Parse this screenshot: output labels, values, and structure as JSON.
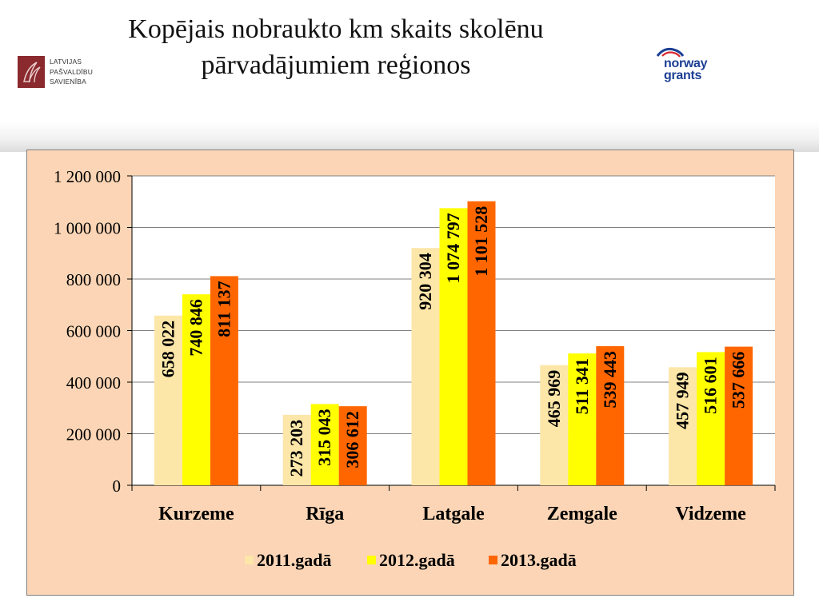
{
  "page": {
    "title_line1": "Kopējais nobraukto km skaits skolēnu",
    "title_line2": "pārvadājumiem reģionos"
  },
  "logos": {
    "lps": {
      "line1": "LATVIJAS",
      "line2": "PAŠVALDĪBU",
      "line3": "SAVIENĪBA",
      "color": "#8a2a2e"
    },
    "norway": {
      "line1": "norway",
      "line2": "grants",
      "color": "#1c3f94",
      "accent": "#d9262e"
    }
  },
  "colors": {
    "plot_background": "#ffffff",
    "chart_background": "#fbd5b5",
    "gridline": "#808080",
    "series": [
      "#fce6a8",
      "#ffff00",
      "#ff6600"
    ]
  },
  "chart_data": {
    "type": "bar",
    "categories": [
      "Kurzeme",
      "Rīga",
      "Latgale",
      "Zemgale",
      "Vidzeme"
    ],
    "series": [
      {
        "name": "2011.gadā",
        "values": [
          658022,
          273203,
          920304,
          465969,
          457949
        ]
      },
      {
        "name": "2012.gadā",
        "values": [
          740846,
          315043,
          1074797,
          511341,
          516601
        ]
      },
      {
        "name": "2013.gadā",
        "values": [
          811137,
          306612,
          1101528,
          539443,
          537666
        ]
      }
    ],
    "data_labels": [
      [
        "658 022",
        "273 203",
        "920 304",
        "465 969",
        "457 949"
      ],
      [
        "740 846",
        "315 043",
        "1 074 797",
        "511 341",
        "516 601"
      ],
      [
        "811 137",
        "306 612",
        "1 101 528",
        "539 443",
        "537 666"
      ]
    ],
    "y_ticks": [
      0,
      200000,
      400000,
      600000,
      800000,
      1000000,
      1200000
    ],
    "y_tick_labels": [
      "0",
      "200 000",
      "400 000",
      "600 000",
      "800 000",
      "1 000 000",
      "1 200 000"
    ],
    "ylim": [
      0,
      1200000
    ],
    "grid": true,
    "legend_position": "bottom"
  }
}
